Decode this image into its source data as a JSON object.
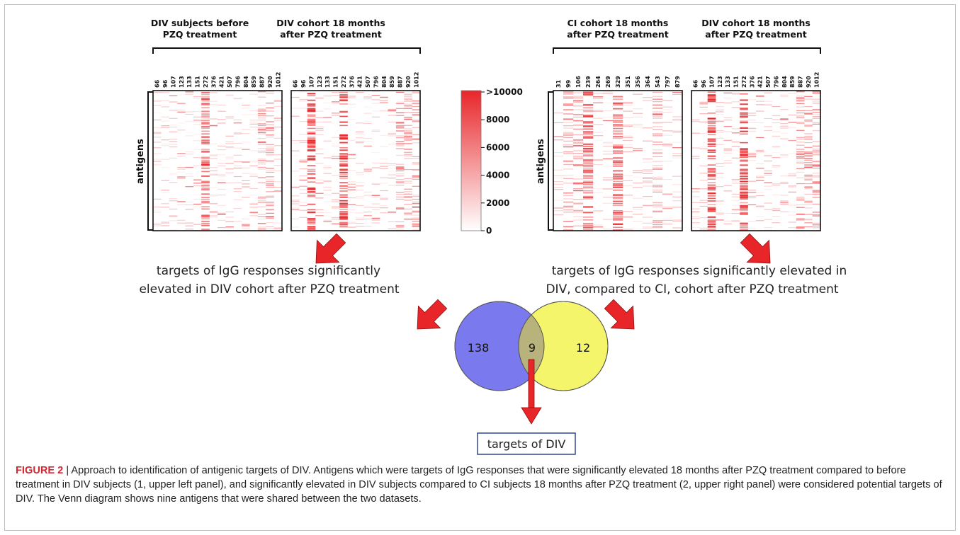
{
  "figure": {
    "panel_titles": [
      [
        "DIV subjects before",
        "PZQ treatment"
      ],
      [
        "DIV cohort 18 months",
        "after PZQ treatment"
      ],
      [
        "CI cohort 18 months",
        "after PZQ treatment"
      ],
      [
        "DIV cohort 18 months",
        "after PZQ treatment"
      ]
    ],
    "subject_ids_div": [
      "66",
      "96",
      "107",
      "123",
      "133",
      "151",
      "272",
      "376",
      "421",
      "507",
      "796",
      "804",
      "859",
      "887",
      "920",
      "1012"
    ],
    "subject_ids_ci": [
      "31",
      "99",
      "106",
      "239",
      "264",
      "269",
      "329",
      "351",
      "356",
      "364",
      "543",
      "797",
      "879"
    ],
    "y_axis_label": "antigens",
    "colorbar": {
      "ticks": [
        ">10000",
        "8000",
        "6000",
        "4000",
        "2000",
        "0"
      ],
      "color_low": "#ffffff",
      "color_high": "#e8262a"
    },
    "annotation_left": [
      "targets of IgG responses significantly",
      "elevated in DIV cohort after PZQ treatment"
    ],
    "annotation_right": [
      "targets of IgG responses significantly elevated in",
      "DIV, compared to CI, cohort after PZQ treatment"
    ],
    "venn": {
      "left_only": "138",
      "overlap": "9",
      "right_only": "12",
      "left_color": "#7b79ee",
      "right_color": "#f5f56c",
      "overlap_color": "#b8b37d"
    },
    "result_box": "targets of DIV",
    "arrow_color": "#e8262a"
  },
  "caption": {
    "label": "FIGURE 2",
    "separator": " | ",
    "text": "Approach to identification of antigenic targets of DIV. Antigens which were targets of IgG responses that were significantly elevated 18 months after PZQ treatment compared to before treatment in DIV subjects (1, upper left panel), and significantly elevated in DIV subjects compared to CI subjects 18 months after PZQ treatment (2, upper right panel) were considered potential targets of DIV. The Venn diagram shows nine antigens that were shared between the two datasets."
  }
}
